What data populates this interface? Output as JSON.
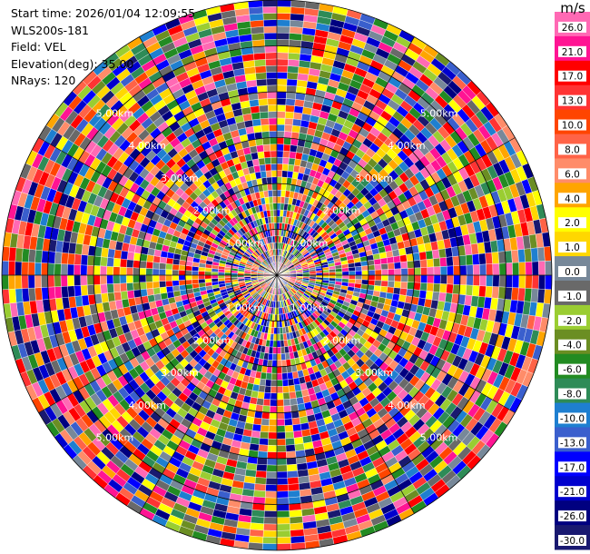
{
  "info": {
    "start_time": "Start time: 2026/01/04 12:09:55",
    "instrument": "WLS200s-181",
    "field": "Field: VEL",
    "elevation": "Elevation(deg): 35.00",
    "nrays": "NRays: 120"
  },
  "chart_data": {
    "type": "heatmap",
    "projection": "polar-ppi",
    "field": "VEL",
    "n_rays": 120,
    "range_max_km": 6.0,
    "range_rings": [
      {
        "km": 1.0,
        "label": "1.00km"
      },
      {
        "km": 2.0,
        "label": "2.00km"
      },
      {
        "km": 3.0,
        "label": "3.00km"
      },
      {
        "km": 4.0,
        "label": "4.00km"
      },
      {
        "km": 5.0,
        "label": "5.00km"
      }
    ],
    "colorbar": {
      "unit": "m/s",
      "tick_labels": [
        "26.0",
        "21.0",
        "17.0",
        "13.0",
        "10.0",
        "8.0",
        "6.0",
        "4.0",
        "2.0",
        "1.0",
        "0.0",
        "-1.0",
        "-2.0",
        "-4.0",
        "-6.0",
        "-8.0",
        "-10.0",
        "-13.0",
        "-17.0",
        "-21.0",
        "-26.0",
        "-30.0"
      ],
      "colors": [
        "#ff69b4",
        "#ff1493",
        "#ff0000",
        "#ff3333",
        "#ff4500",
        "#ff6347",
        "#ff8c69",
        "#ffa500",
        "#ffff00",
        "#ffd700",
        "#778899",
        "#696969",
        "#9acd32",
        "#6b8e23",
        "#228b22",
        "#2e8b57",
        "#1e7fd0",
        "#3a5fcd",
        "#0000ff",
        "#0000cd",
        "#000080",
        "#191970"
      ]
    }
  }
}
